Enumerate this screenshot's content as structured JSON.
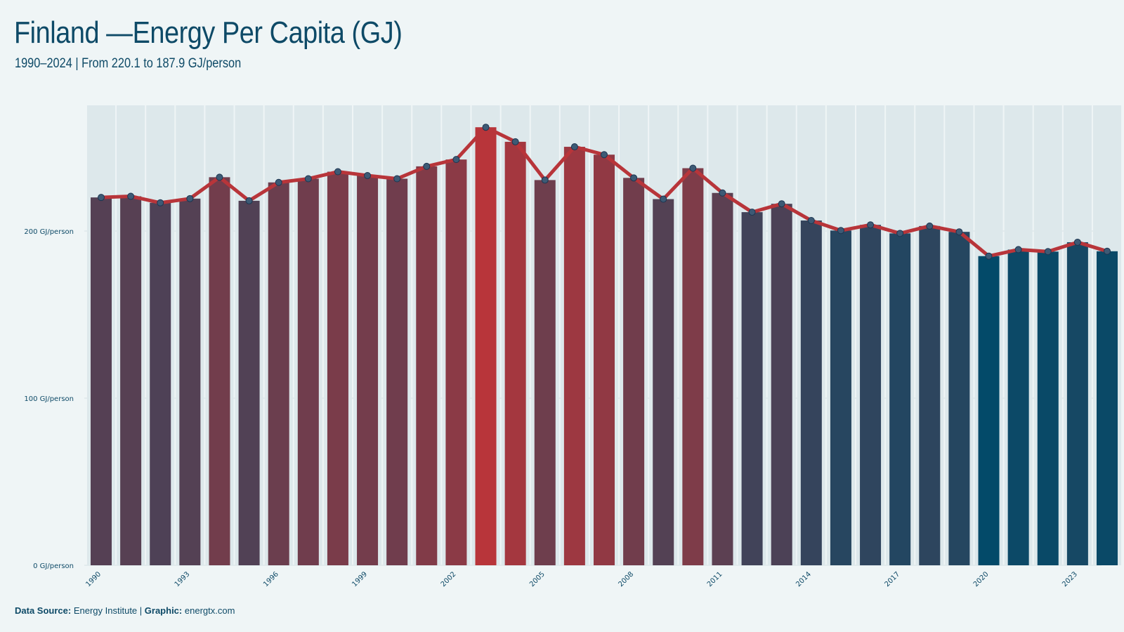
{
  "chart_data": {
    "type": "bar",
    "title": "Finland —Energy Per Capita (GJ)",
    "subtitle": "1990–2024 | From 220.1 to 187.9 GJ/person",
    "x": [
      1990,
      1991,
      1992,
      1993,
      1994,
      1995,
      1996,
      1997,
      1998,
      1999,
      2000,
      2001,
      2002,
      2003,
      2004,
      2005,
      2006,
      2007,
      2008,
      2009,
      2010,
      2011,
      2012,
      2013,
      2014,
      2015,
      2016,
      2017,
      2018,
      2019,
      2020,
      2021,
      2022,
      2023,
      2024
    ],
    "values": [
      220.1,
      220.8,
      216.9,
      219.4,
      232.2,
      218.1,
      229.1,
      231.3,
      235.5,
      233.2,
      231.3,
      238.7,
      242.8,
      262.1,
      253.4,
      230.5,
      250.4,
      245.7,
      231.8,
      219.1,
      237.6,
      222.8,
      211.3,
      216.3,
      206.3,
      200.3,
      203.7,
      198.6,
      203.0,
      199.5,
      185.0,
      188.9,
      187.7,
      193.3,
      187.9
    ],
    "series": [
      {
        "name": "",
        "type": "bar"
      },
      {
        "name": "",
        "type": "line",
        "color": "#b8353a"
      }
    ],
    "y_ticks": [
      {
        "value": 0,
        "label": "0 GJ/person"
      },
      {
        "value": 100,
        "label": "100 GJ/person"
      },
      {
        "value": 200,
        "label": "200 GJ/person"
      }
    ],
    "x_tick_labels": [
      "1990",
      "1993",
      "1996",
      "1999",
      "2002",
      "2005",
      "2008",
      "2011",
      "2014",
      "2017",
      "2020",
      "2023"
    ],
    "ylim": [
      0,
      270
    ],
    "grid": "horizontal",
    "colors": {
      "high": "#b8353a",
      "low": "#034a69",
      "line": "#b8353a",
      "point": "#3d5a75"
    }
  },
  "footer": {
    "source_label": "Data Source:",
    "source_value": "Energy Institute |",
    "graphic_label": "Graphic:",
    "graphic_value": "energtx.com"
  }
}
